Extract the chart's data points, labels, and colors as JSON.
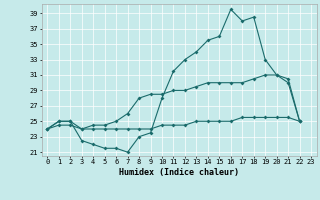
{
  "xlabel": "Humidex (Indice chaleur)",
  "xlim": [
    -0.5,
    23.5
  ],
  "ylim": [
    20.5,
    40.2
  ],
  "yticks": [
    21,
    23,
    25,
    27,
    29,
    31,
    33,
    35,
    37,
    39
  ],
  "xticks": [
    0,
    1,
    2,
    3,
    4,
    5,
    6,
    7,
    8,
    9,
    10,
    11,
    12,
    13,
    14,
    15,
    16,
    17,
    18,
    19,
    20,
    21,
    22,
    23
  ],
  "bg_color": "#c6eaea",
  "line_color": "#1a6b6b",
  "line1_x": [
    0,
    1,
    2,
    3,
    4,
    5,
    6,
    7,
    8,
    9,
    10,
    11,
    12,
    13,
    14,
    15,
    16,
    17,
    18,
    19,
    20,
    21,
    22
  ],
  "line1_y": [
    24,
    25,
    25,
    22.5,
    22,
    21.5,
    21.5,
    21,
    23,
    23.5,
    28,
    31.5,
    33,
    34,
    35.5,
    36,
    39.5,
    38,
    38.5,
    33,
    31,
    30.5,
    25
  ],
  "line2_x": [
    0,
    1,
    2,
    3,
    4,
    5,
    6,
    7,
    8,
    9,
    10,
    11,
    12,
    13,
    14,
    15,
    16,
    17,
    18,
    19,
    20,
    21,
    22
  ],
  "line2_y": [
    24,
    25,
    25,
    24,
    24.5,
    24.5,
    25,
    26,
    28,
    28.5,
    28.5,
    29,
    29,
    29.5,
    30,
    30,
    30,
    30,
    30.5,
    31,
    31,
    30,
    25
  ],
  "line3_x": [
    0,
    1,
    2,
    3,
    4,
    5,
    6,
    7,
    8,
    9,
    10,
    11,
    12,
    13,
    14,
    15,
    16,
    17,
    18,
    19,
    20,
    21,
    22
  ],
  "line3_y": [
    24,
    24.5,
    24.5,
    24,
    24,
    24,
    24,
    24,
    24,
    24,
    24.5,
    24.5,
    24.5,
    25,
    25,
    25,
    25,
    25.5,
    25.5,
    25.5,
    25.5,
    25.5,
    25
  ]
}
